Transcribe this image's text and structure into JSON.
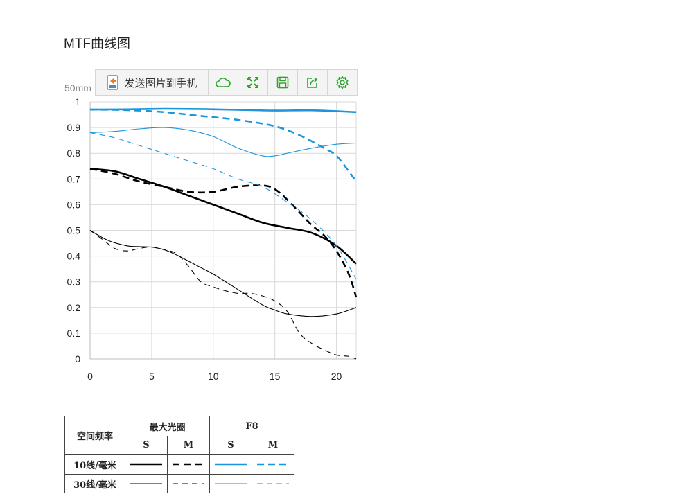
{
  "page": {
    "title": "MTF曲线图"
  },
  "toolbar": {
    "send_label": "发送图片到手机",
    "icons": [
      "phone-send-icon",
      "cloud-icon",
      "fullscreen-icon",
      "save-icon",
      "share-icon",
      "settings-icon"
    ],
    "icon_color": "#2aa52a"
  },
  "chart": {
    "focal_label": "50mm"
  },
  "chart_data": {
    "type": "line",
    "title": "",
    "xlabel": "",
    "ylabel": "",
    "xlim": [
      0,
      21.6
    ],
    "ylim": [
      0,
      1
    ],
    "xticks": [
      "0",
      "5",
      "10",
      "15",
      "20"
    ],
    "yticks": [
      "0",
      "0.1",
      "0.2",
      "0.3",
      "0.4",
      "0.5",
      "0.6",
      "0.7",
      "0.8",
      "0.9",
      "1"
    ],
    "grid": true,
    "series": [
      {
        "color": "#000000",
        "dash": "solid",
        "weight": "bold",
        "x": [
          0,
          2,
          4,
          6,
          8,
          10,
          12,
          14,
          16,
          18,
          20,
          21.6
        ],
        "y": [
          0.74,
          0.73,
          0.7,
          0.67,
          0.635,
          0.6,
          0.565,
          0.53,
          0.51,
          0.49,
          0.44,
          0.37
        ]
      },
      {
        "color": "#000000",
        "dash": "dashed",
        "weight": "bold",
        "x": [
          0,
          2,
          4,
          6,
          8,
          10,
          12,
          14,
          15,
          16,
          17,
          18,
          19,
          20,
          21,
          21.6
        ],
        "y": [
          0.74,
          0.72,
          0.69,
          0.67,
          0.65,
          0.65,
          0.67,
          0.675,
          0.66,
          0.62,
          0.57,
          0.52,
          0.48,
          0.42,
          0.33,
          0.24
        ]
      },
      {
        "color": "#1a96dc",
        "dash": "solid",
        "weight": "bold",
        "x": [
          0,
          3,
          6,
          9,
          12,
          15,
          18,
          21.6
        ],
        "y": [
          0.97,
          0.971,
          0.973,
          0.972,
          0.969,
          0.966,
          0.967,
          0.96
        ]
      },
      {
        "color": "#1a96dc",
        "dash": "dashed",
        "weight": "bold",
        "x": [
          0,
          3,
          6,
          9,
          12,
          15,
          17,
          19,
          20,
          21,
          21.6
        ],
        "y": [
          0.97,
          0.968,
          0.96,
          0.945,
          0.93,
          0.905,
          0.87,
          0.82,
          0.79,
          0.73,
          0.69
        ]
      },
      {
        "color": "#000000",
        "dash": "solid",
        "weight": "thin",
        "x": [
          0,
          1.5,
          3,
          4,
          5,
          6,
          7,
          8,
          9,
          10,
          12,
          14,
          15,
          16,
          18,
          20,
          21.6
        ],
        "y": [
          0.5,
          0.46,
          0.44,
          0.437,
          0.435,
          0.425,
          0.405,
          0.38,
          0.355,
          0.33,
          0.27,
          0.21,
          0.19,
          0.175,
          0.165,
          0.175,
          0.2
        ]
      },
      {
        "color": "#000000",
        "dash": "dashed",
        "weight": "thin",
        "x": [
          0,
          1,
          2,
          3,
          4,
          5,
          6,
          7,
          8,
          9,
          10,
          11,
          12,
          13,
          14,
          15,
          16,
          17,
          18,
          19,
          20,
          21,
          21.6
        ],
        "y": [
          0.5,
          0.465,
          0.43,
          0.42,
          0.43,
          0.435,
          0.425,
          0.41,
          0.36,
          0.3,
          0.28,
          0.265,
          0.255,
          0.255,
          0.245,
          0.225,
          0.185,
          0.1,
          0.06,
          0.035,
          0.015,
          0.01,
          0.0
        ]
      },
      {
        "color": "#1a96dc",
        "dash": "solid",
        "weight": "thin",
        "x": [
          0,
          2,
          4,
          6,
          8,
          10,
          12,
          14,
          15,
          16,
          18,
          20,
          21.6
        ],
        "y": [
          0.88,
          0.885,
          0.895,
          0.9,
          0.89,
          0.865,
          0.82,
          0.79,
          0.79,
          0.8,
          0.82,
          0.835,
          0.84
        ]
      },
      {
        "color": "#1a96dc",
        "dash": "dashed",
        "weight": "thin",
        "x": [
          0,
          2,
          4,
          6,
          8,
          10,
          12,
          14,
          16,
          18,
          20,
          21.6
        ],
        "y": [
          0.88,
          0.86,
          0.83,
          0.8,
          0.77,
          0.74,
          0.7,
          0.67,
          0.61,
          0.54,
          0.44,
          0.31
        ]
      }
    ]
  },
  "legend": {
    "header_label": "空间频率",
    "groups": [
      "最大光圈",
      "F8"
    ],
    "subheaders": [
      "S",
      "M",
      "S",
      "M"
    ],
    "rows": [
      "10线/毫米",
      "30线/毫米"
    ]
  }
}
